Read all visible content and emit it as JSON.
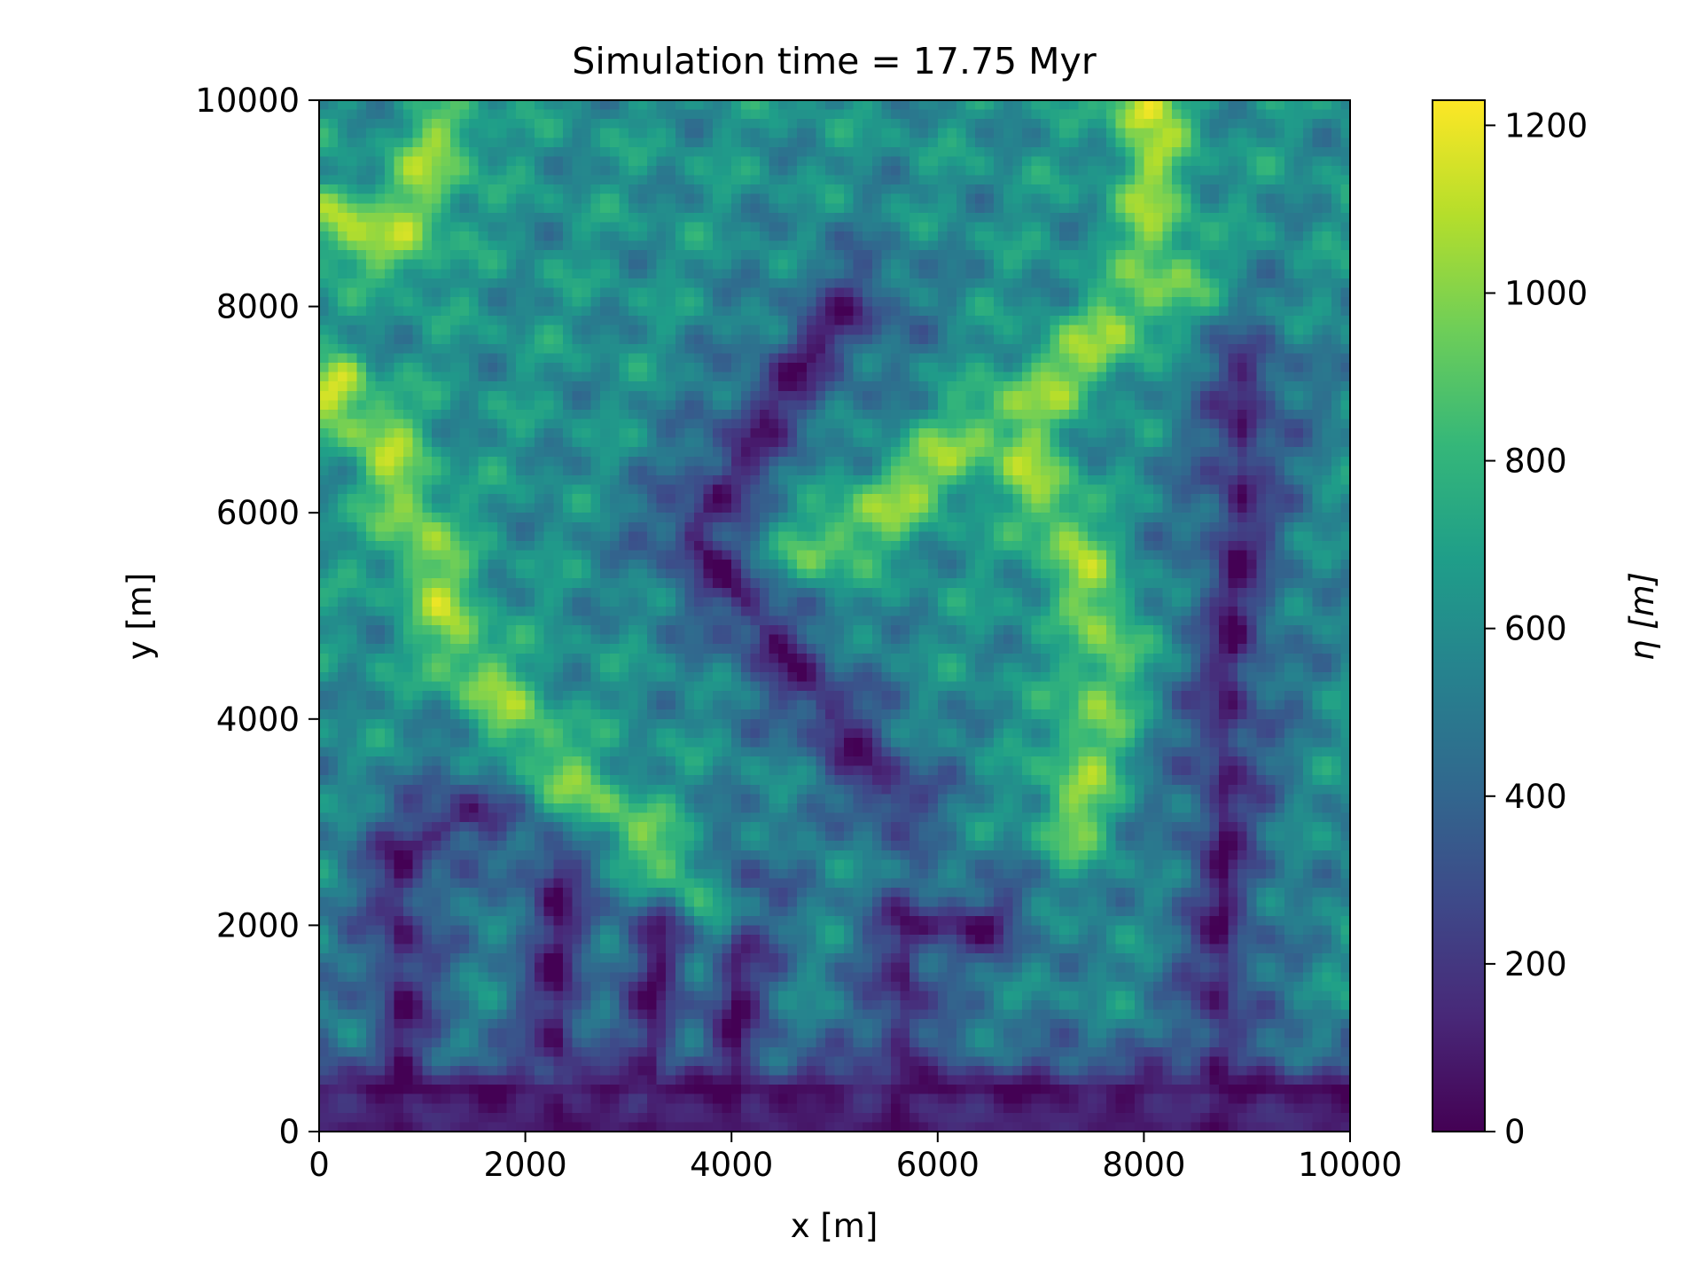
{
  "chart_data": {
    "type": "heatmap",
    "title": "Simulation time = 17.75 Myr",
    "xlabel": "x [m]",
    "ylabel": "y [m]",
    "xlim": [
      0,
      10000
    ],
    "ylim": [
      0,
      10000
    ],
    "x_ticks": [
      0,
      2000,
      4000,
      6000,
      8000,
      10000
    ],
    "y_ticks": [
      0,
      2000,
      4000,
      6000,
      8000,
      10000
    ],
    "colormap": "viridis",
    "grid": false,
    "colorbar": {
      "label": "η [m]",
      "range": [
        0,
        1230
      ],
      "ticks": [
        0,
        200,
        400,
        600,
        800,
        1000,
        1200
      ]
    },
    "colorbar_colors": [
      "#440154",
      "#482878",
      "#3e4989",
      "#31688e",
      "#26828e",
      "#1f9e89",
      "#35b779",
      "#6ece58",
      "#b5de2b",
      "#fde725"
    ],
    "channels": [
      {
        "name": "",
        "points": [
          [
            800,
            0
          ],
          [
            800,
            2700
          ],
          [
            1500,
            3100
          ]
        ]
      },
      {
        "name": "",
        "points": [
          [
            2300,
            0
          ],
          [
            2300,
            2600
          ]
        ]
      },
      {
        "name": "",
        "points": [
          [
            3200,
            0
          ],
          [
            3300,
            2000
          ]
        ]
      },
      {
        "name": "",
        "points": [
          [
            4000,
            0
          ],
          [
            4100,
            2400
          ]
        ]
      },
      {
        "name": "",
        "points": [
          [
            5600,
            0
          ],
          [
            5700,
            2000
          ],
          [
            6500,
            2000
          ]
        ]
      },
      {
        "name": "",
        "points": [
          [
            5600,
            3200
          ],
          [
            3600,
            5800
          ],
          [
            4500,
            7200
          ],
          [
            5200,
            8000
          ]
        ]
      },
      {
        "name": "",
        "points": [
          [
            8700,
            0
          ],
          [
            8800,
            3800
          ],
          [
            9000,
            7300
          ]
        ]
      },
      {
        "name": "",
        "points": [
          [
            0,
            400
          ],
          [
            10000,
            400
          ]
        ]
      }
    ],
    "ridges": [
      {
        "name": "",
        "points": [
          [
            0,
            7100
          ],
          [
            600,
            6800
          ],
          [
            1400,
            4600
          ],
          [
            2400,
            3400
          ],
          [
            3900,
            2200
          ]
        ]
      },
      {
        "name": "",
        "points": [
          [
            0,
            8800
          ],
          [
            800,
            8600
          ],
          [
            1200,
            9600
          ]
        ]
      },
      {
        "name": "",
        "points": [
          [
            4800,
            5600
          ],
          [
            6500,
            6800
          ],
          [
            7800,
            7800
          ],
          [
            8300,
            8300
          ]
        ]
      },
      {
        "name": "",
        "points": [
          [
            6800,
            6700
          ],
          [
            7700,
            4800
          ],
          [
            7300,
            3000
          ]
        ]
      },
      {
        "name": "",
        "points": [
          [
            8100,
            9900
          ],
          [
            8100,
            8100
          ]
        ]
      }
    ],
    "peaks": [
      {
        "x": 8000,
        "y": 9950,
        "value": 1230
      },
      {
        "x": 200,
        "y": 7150,
        "value": 1180
      },
      {
        "x": 200,
        "y": 8900,
        "value": 1100
      },
      {
        "x": 7700,
        "y": 7800,
        "value": 1050
      }
    ]
  }
}
